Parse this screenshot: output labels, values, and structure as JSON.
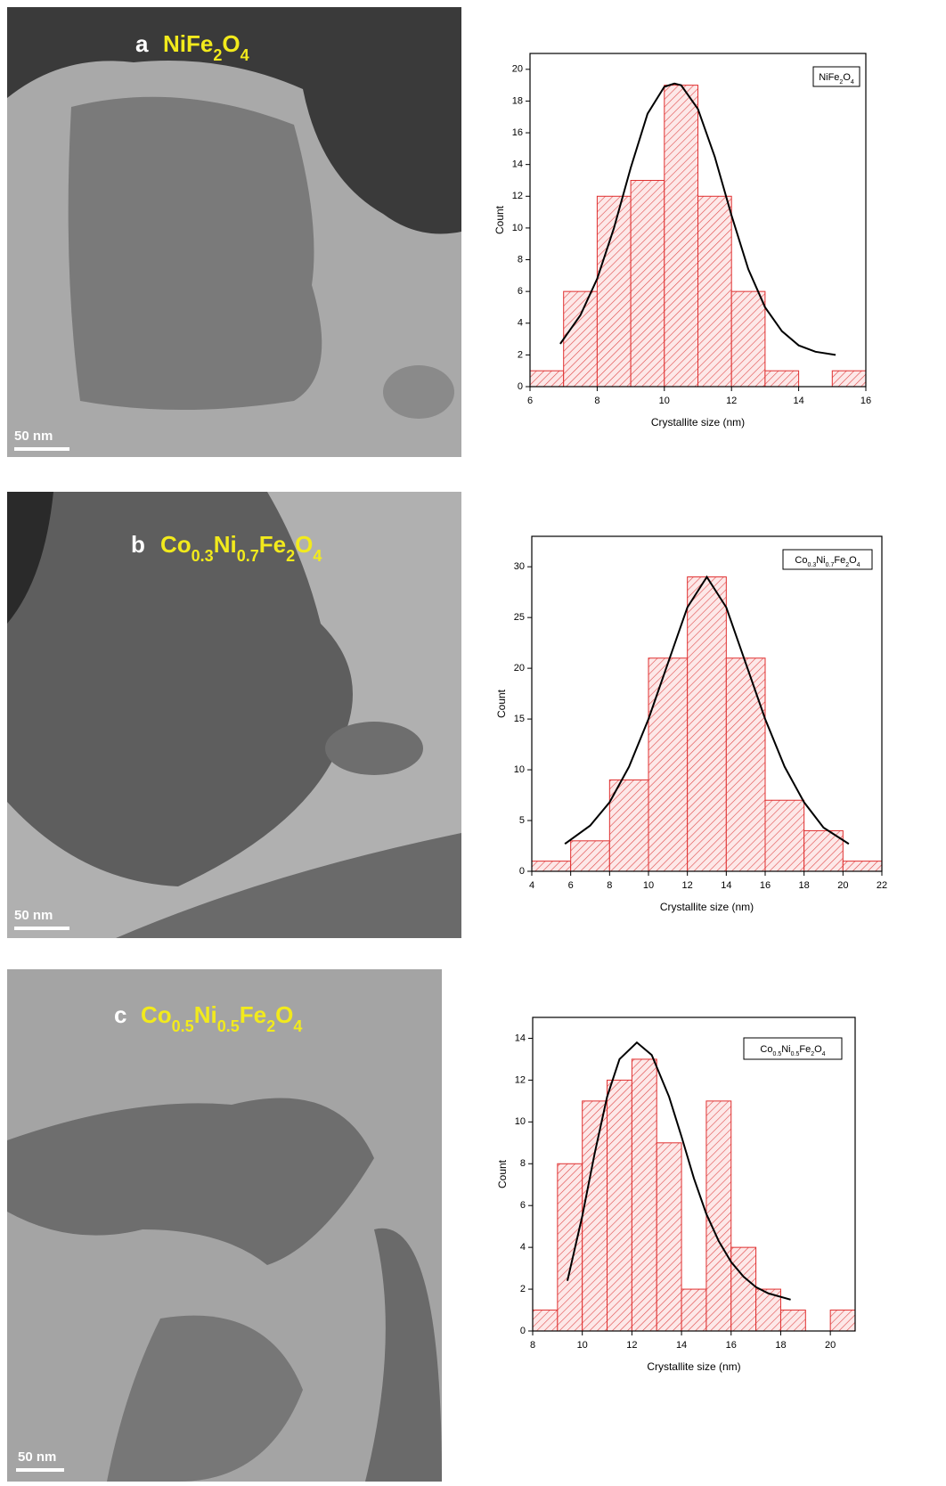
{
  "panels": [
    {
      "letter": "a",
      "label": "NiFe2O4",
      "scale_bar": "50 nm"
    },
    {
      "letter": "b",
      "label": "Co0.3Ni0.7Fe2O4",
      "scale_bar": "50 nm"
    },
    {
      "letter": "c",
      "label": "Co0.5Ni0.5Fe2O4",
      "scale_bar": "50 nm"
    }
  ],
  "chart_data": [
    {
      "type": "histogram",
      "x_label": "Crystallite size (nm)",
      "y_label": "Count",
      "bins": [
        6,
        7,
        8,
        9,
        10,
        11,
        12,
        13,
        14,
        15,
        16
      ],
      "series": [
        {
          "name": "NiFe2O4",
          "color": "#e03030",
          "values": [
            1,
            6,
            12,
            13,
            19,
            12,
            6,
            1,
            0,
            1
          ]
        }
      ],
      "fit": {
        "color": "#000000",
        "x": [
          6.9,
          7.5,
          8,
          8.5,
          9,
          9.5,
          10,
          10.3,
          10.5,
          11,
          11.5,
          12,
          12.5,
          13,
          13.5,
          14,
          14.5,
          15.1
        ],
        "values": [
          2.7,
          4.5,
          6.8,
          10.0,
          13.8,
          17.2,
          18.9,
          19.1,
          19.0,
          17.5,
          14.5,
          10.8,
          7.4,
          5.0,
          3.5,
          2.6,
          2.2,
          2.0
        ]
      },
      "xlim": [
        6,
        16
      ],
      "xticks": [
        6,
        8,
        10,
        12,
        14,
        16
      ],
      "ylim": [
        0,
        21
      ],
      "yticks": [
        0,
        2,
        4,
        6,
        8,
        10,
        12,
        14,
        16,
        18,
        20
      ]
    },
    {
      "type": "histogram",
      "x_label": "Crystallite size (nm)",
      "y_label": "Count",
      "bins": [
        4,
        6,
        8,
        10,
        12,
        14,
        16,
        18,
        20,
        22
      ],
      "series": [
        {
          "name": "Co0.3Ni0.7Fe2O4",
          "color": "#e03030",
          "values": [
            1,
            3,
            9,
            21,
            29,
            21,
            7,
            4,
            1
          ]
        }
      ],
      "fit": {
        "color": "#000000",
        "x": [
          5.7,
          7,
          8,
          9,
          10,
          11,
          12,
          13,
          14,
          15,
          16,
          17,
          18,
          19,
          20.3
        ],
        "values": [
          2.7,
          4.5,
          6.8,
          10.3,
          15,
          20.5,
          26,
          29,
          26,
          20.5,
          15,
          10.3,
          6.8,
          4.3,
          2.7
        ]
      },
      "xlim": [
        4,
        22
      ],
      "xticks": [
        4,
        6,
        8,
        10,
        12,
        14,
        16,
        18,
        20,
        22
      ],
      "ylim": [
        0,
        33
      ],
      "yticks": [
        0,
        5,
        10,
        15,
        20,
        25,
        30
      ]
    },
    {
      "type": "histogram",
      "x_label": "Crystallite size (nm)",
      "y_label": "Count",
      "bins": [
        8,
        9,
        10,
        11,
        12,
        13,
        14,
        15,
        16,
        17,
        18,
        19,
        20,
        21
      ],
      "series": [
        {
          "name": "Co0.5Ni0.5Fe2O4",
          "color": "#e03030",
          "values": [
            1,
            8,
            11,
            12,
            13,
            9,
            2,
            11,
            4,
            2,
            1,
            0,
            1
          ]
        }
      ],
      "fit": {
        "color": "#000000",
        "x": [
          9.4,
          10,
          10.5,
          11,
          11.5,
          12.2,
          12.8,
          13.5,
          14,
          14.5,
          15,
          15.5,
          16,
          16.5,
          17,
          17.5,
          18.4
        ],
        "values": [
          2.4,
          5.5,
          8.5,
          11.2,
          13.0,
          13.8,
          13.2,
          11.2,
          9.3,
          7.3,
          5.6,
          4.3,
          3.3,
          2.6,
          2.1,
          1.8,
          1.5
        ]
      },
      "xlim": [
        8,
        21
      ],
      "xticks": [
        8,
        10,
        12,
        14,
        16,
        18,
        20
      ],
      "ylim": [
        0,
        15
      ],
      "yticks": [
        0,
        2,
        4,
        6,
        8,
        10,
        12,
        14
      ]
    }
  ]
}
